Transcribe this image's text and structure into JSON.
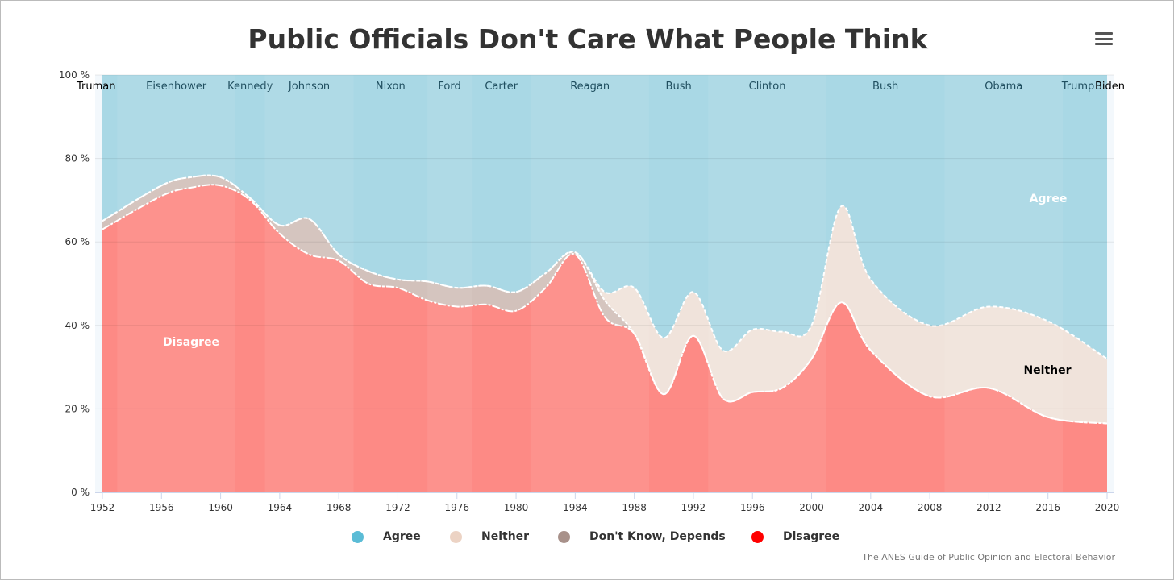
{
  "title": "Public Officials Don't Care What People Think",
  "credit": "The ANES Guide of Public Opinion and Electoral Behavior",
  "chart_data": {
    "type": "area",
    "stacking": "percent",
    "title": "Public Officials Don't Care What People Think",
    "x": [
      1952,
      1956,
      1958,
      1960,
      1962,
      1964,
      1966,
      1968,
      1970,
      1972,
      1974,
      1976,
      1978,
      1980,
      1982,
      1984,
      1986,
      1988,
      1990,
      1992,
      1994,
      1996,
      1998,
      2000,
      2002,
      2004,
      2008,
      2012,
      2016,
      2020
    ],
    "series": [
      {
        "name": "Agree",
        "color": "#a9d8e5",
        "legend_color": "#5bbcd6",
        "values": [
          35,
          26.5,
          24.5,
          24.5,
          29.5,
          36,
          34.5,
          43,
          47,
          49,
          49.5,
          51,
          50.5,
          52,
          47.5,
          42.5,
          52,
          51,
          63,
          52,
          66,
          61,
          61.5,
          60,
          31.5,
          49,
          60,
          55.5,
          59,
          68
        ]
      },
      {
        "name": "Neither",
        "color": "#f0e3db",
        "legend_color": "#ecd3c4",
        "values": [
          0,
          0,
          0,
          0,
          0,
          0,
          0,
          0,
          0,
          0,
          0,
          0,
          0,
          0,
          0,
          0,
          2,
          11,
          13.5,
          10.5,
          11.5,
          15,
          13.5,
          8,
          23,
          17,
          17,
          19.5,
          23,
          15.5
        ]
      },
      {
        "name": "Don't Know, Depends",
        "color": "#d2c1bb",
        "legend_color": "#a8918a",
        "values": [
          2,
          2.5,
          2.5,
          2,
          0.5,
          2,
          8.5,
          1.5,
          3,
          2,
          4.5,
          4.5,
          4.5,
          4.5,
          3.5,
          0.5,
          4,
          0,
          0,
          0,
          0,
          0,
          0,
          0,
          0,
          0,
          0,
          0,
          0,
          0
        ]
      },
      {
        "name": "Disagree",
        "color": "#fd8a85",
        "legend_color": "#ff0000",
        "values": [
          63,
          71,
          73,
          73.5,
          70,
          62,
          57,
          55.5,
          50,
          49,
          46,
          44.5,
          45,
          43.5,
          49,
          57,
          42,
          38,
          23.5,
          37.5,
          22.5,
          24,
          25,
          32,
          45.5,
          34,
          23,
          25,
          18,
          16.5
        ]
      }
    ],
    "series_labels": {
      "agree": "Agree",
      "neither": "Neither",
      "disagree": "Disagree"
    },
    "ylim": [
      0,
      100
    ],
    "yticks": [
      "0 %",
      "20 %",
      "40 %",
      "60 %",
      "80 %",
      "100 %"
    ],
    "xticks": [
      "1952",
      "1956",
      "1960",
      "1964",
      "1968",
      "1972",
      "1976",
      "1980",
      "1984",
      "1988",
      "1992",
      "1996",
      "2000",
      "2004",
      "2008",
      "2012",
      "2016",
      "2020"
    ],
    "xlim": [
      1952,
      2020
    ],
    "presidents": [
      {
        "name": "Truman",
        "from": 1952,
        "to": 1953
      },
      {
        "name": "Eisenhower",
        "from": 1953,
        "to": 1961
      },
      {
        "name": "Kennedy",
        "from": 1961,
        "to": 1963
      },
      {
        "name": "Johnson",
        "from": 1963,
        "to": 1969
      },
      {
        "name": "Nixon",
        "from": 1969,
        "to": 1974
      },
      {
        "name": "Ford",
        "from": 1974,
        "to": 1977
      },
      {
        "name": "Carter",
        "from": 1977,
        "to": 1981
      },
      {
        "name": "Reagan",
        "from": 1981,
        "to": 1989
      },
      {
        "name": "Bush",
        "from": 1989,
        "to": 1993
      },
      {
        "name": "Clinton",
        "from": 1993,
        "to": 2001
      },
      {
        "name": "Bush",
        "from": 2001,
        "to": 2009
      },
      {
        "name": "Obama",
        "from": 2009,
        "to": 2017
      },
      {
        "name": "Trump",
        "from": 2017,
        "to": 2020
      },
      {
        "name": "Biden",
        "from": 2020,
        "to": 2021
      }
    ],
    "legend": "bottom"
  }
}
